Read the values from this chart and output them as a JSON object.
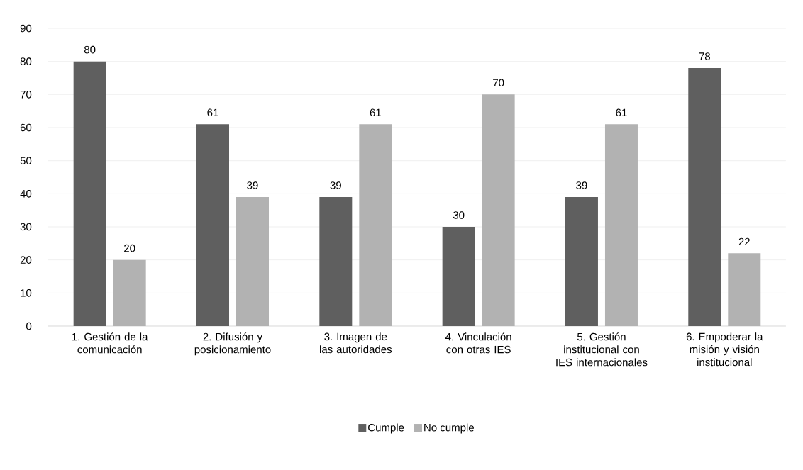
{
  "chart_data": {
    "type": "bar",
    "categories": [
      "1. Gestión de la comunicación",
      "2. Difusión y posicionamiento",
      "3. Imagen de las autoridades",
      "4. Vinculación con otras IES",
      "5. Gestión institucional con IES internacionales",
      "6. Empoderar la misión y visión institucional"
    ],
    "series": [
      {
        "name": "Cumple",
        "color": "#5f5f5f",
        "values": [
          80,
          61,
          39,
          30,
          39,
          78
        ]
      },
      {
        "name": "No cumple",
        "color": "#b2b2b2",
        "values": [
          20,
          39,
          61,
          70,
          61,
          22
        ]
      }
    ],
    "ylim": [
      0,
      90
    ],
    "yticks": [
      0,
      10,
      20,
      30,
      40,
      50,
      60,
      70,
      80,
      90
    ],
    "grid": "y",
    "legend": "bottom",
    "data_labels": true
  }
}
